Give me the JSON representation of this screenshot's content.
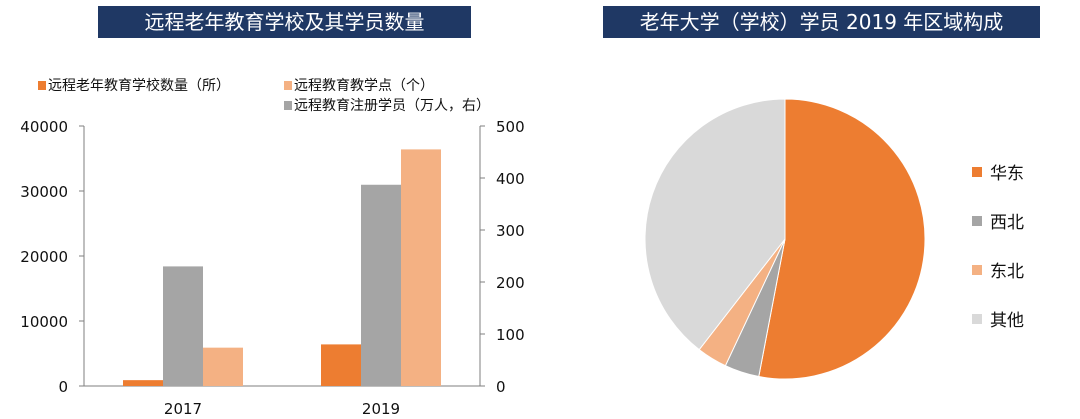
{
  "titles": {
    "left": "远程老年教育学校及其学员数量",
    "right": "老年大学（学校）学员 2019 年区域构成"
  },
  "chart_data": [
    {
      "type": "bar",
      "categories": [
        "2017",
        "2019"
      ],
      "series": [
        {
          "name": "远程老年教育学校数量（所）",
          "axis": "left",
          "color": "#ed7d31",
          "values": [
            900,
            6400
          ]
        },
        {
          "name": "远程教育注册学员（万人，右）",
          "axis": "right",
          "color": "#a5a5a5",
          "values": [
            230,
            387
          ]
        },
        {
          "name": "远程教育教学点（个）",
          "axis": "left",
          "color": "#f4b183",
          "values": [
            5900,
            36400
          ]
        }
      ],
      "ylim": [
        0,
        40000
      ],
      "y_ticks": [
        "0",
        "10000",
        "20000",
        "30000",
        "40000"
      ],
      "y2lim": [
        0,
        500
      ],
      "y2_ticks": [
        "0",
        "100",
        "200",
        "300",
        "400",
        "500"
      ],
      "legend": {
        "placement": "top",
        "entries": [
          {
            "label": "远程老年教育学校数量（所）",
            "color": "#ed7d31"
          },
          {
            "label": "远程教育教学点（个）",
            "color": "#f4b183"
          },
          {
            "label": "远程教育注册学员（万人，右）",
            "color": "#a5a5a5"
          }
        ]
      },
      "grid": false
    },
    {
      "type": "pie",
      "slices": [
        {
          "label": "华东",
          "value": 53,
          "color": "#ed7d31"
        },
        {
          "label": "西北",
          "value": 4,
          "color": "#a5a5a5"
        },
        {
          "label": "东北",
          "value": 3.5,
          "color": "#f4b183"
        },
        {
          "label": "其他",
          "value": 39.5,
          "color": "#d9d9d9"
        }
      ],
      "legend": {
        "placement": "right"
      }
    }
  ]
}
